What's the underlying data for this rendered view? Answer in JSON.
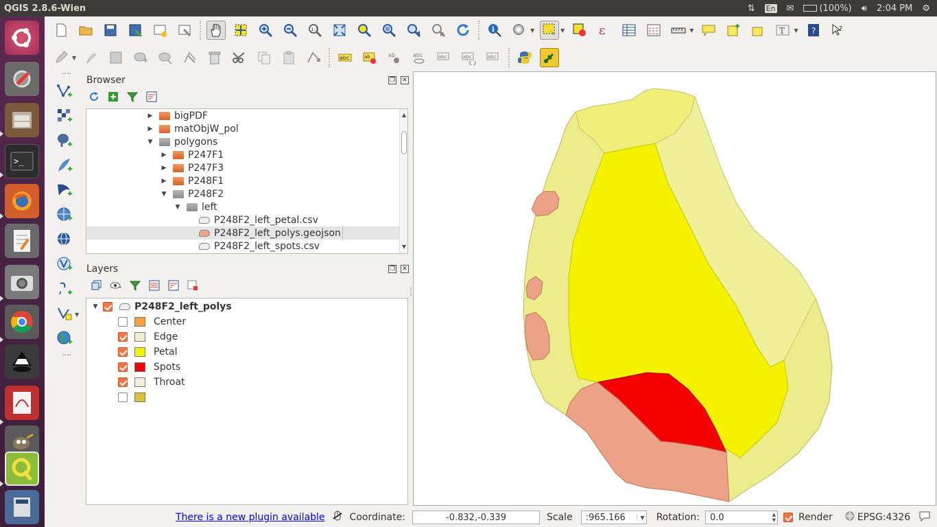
{
  "window": {
    "title": "QGIS 2.8.6-Wien"
  },
  "tray": {
    "keyboard": "En",
    "battery": "(100%)",
    "time": "2:04 PM"
  },
  "browser": {
    "title": "Browser",
    "items": [
      {
        "label": "bigPDF"
      },
      {
        "label": "matObjW_pol"
      },
      {
        "label": "polygons"
      },
      {
        "label": "P247F1"
      },
      {
        "label": "P247F3"
      },
      {
        "label": "P248F1"
      },
      {
        "label": "P248F2"
      },
      {
        "label": "left"
      },
      {
        "label": "P248F2_left_petal.csv"
      },
      {
        "label": "P248F2_left_polys.geojson"
      },
      {
        "label": "P248F2_left_spots.csv"
      }
    ]
  },
  "layers": {
    "title": "Layers",
    "layer_name": "P248F2_left_polys",
    "classes": [
      {
        "label": "Center",
        "color": "#f7a13c",
        "checked": false
      },
      {
        "label": "Edge",
        "color": "#eeeed0",
        "checked": true
      },
      {
        "label": "Petal",
        "color": "#f4f200",
        "checked": true
      },
      {
        "label": "Spots",
        "color": "#ee0000",
        "checked": true
      },
      {
        "label": "Throat",
        "color": "#f1efd8",
        "checked": true
      },
      {
        "label": "",
        "color": "#d9c33a",
        "checked": false
      }
    ]
  },
  "map": {
    "colors": {
      "edge": "#ecec8c",
      "petal": "#f4f200",
      "throat_top": "#f0ef7a",
      "spots": "#f40000",
      "center": "#eba286"
    }
  },
  "status": {
    "plugin_notice": "There is a new plugin available",
    "coordinate_label": "Coordinate:",
    "coordinate_value": "-0.832,-0.339",
    "scale_label": "Scale",
    "scale_value": ":965.166",
    "rotation_label": "Rotation:",
    "rotation_value": "0.0",
    "render_label": "Render",
    "crs": "EPSG:4326"
  }
}
